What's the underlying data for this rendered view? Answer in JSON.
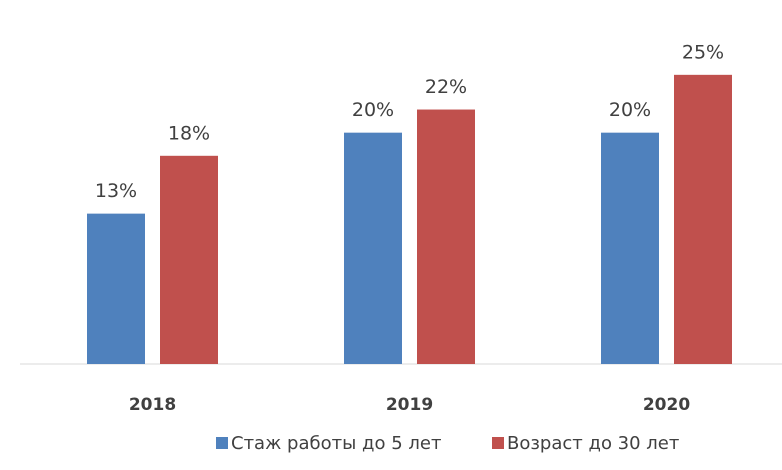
{
  "chart_data": {
    "type": "bar",
    "categories": [
      "2018",
      "2019",
      "2020"
    ],
    "series": [
      {
        "name": "Стаж работы до 5 лет",
        "color": "#4f81bd",
        "values": [
          13,
          20,
          20
        ],
        "value_labels": [
          "13%",
          "20%",
          "20%"
        ]
      },
      {
        "name": "Возраст до 30 лет",
        "color": "#c0504d",
        "values": [
          18,
          22,
          25
        ],
        "value_labels": [
          "18%",
          "22%",
          "25%"
        ]
      }
    ],
    "ylim": [
      0,
      30
    ],
    "legend": "bottom"
  }
}
